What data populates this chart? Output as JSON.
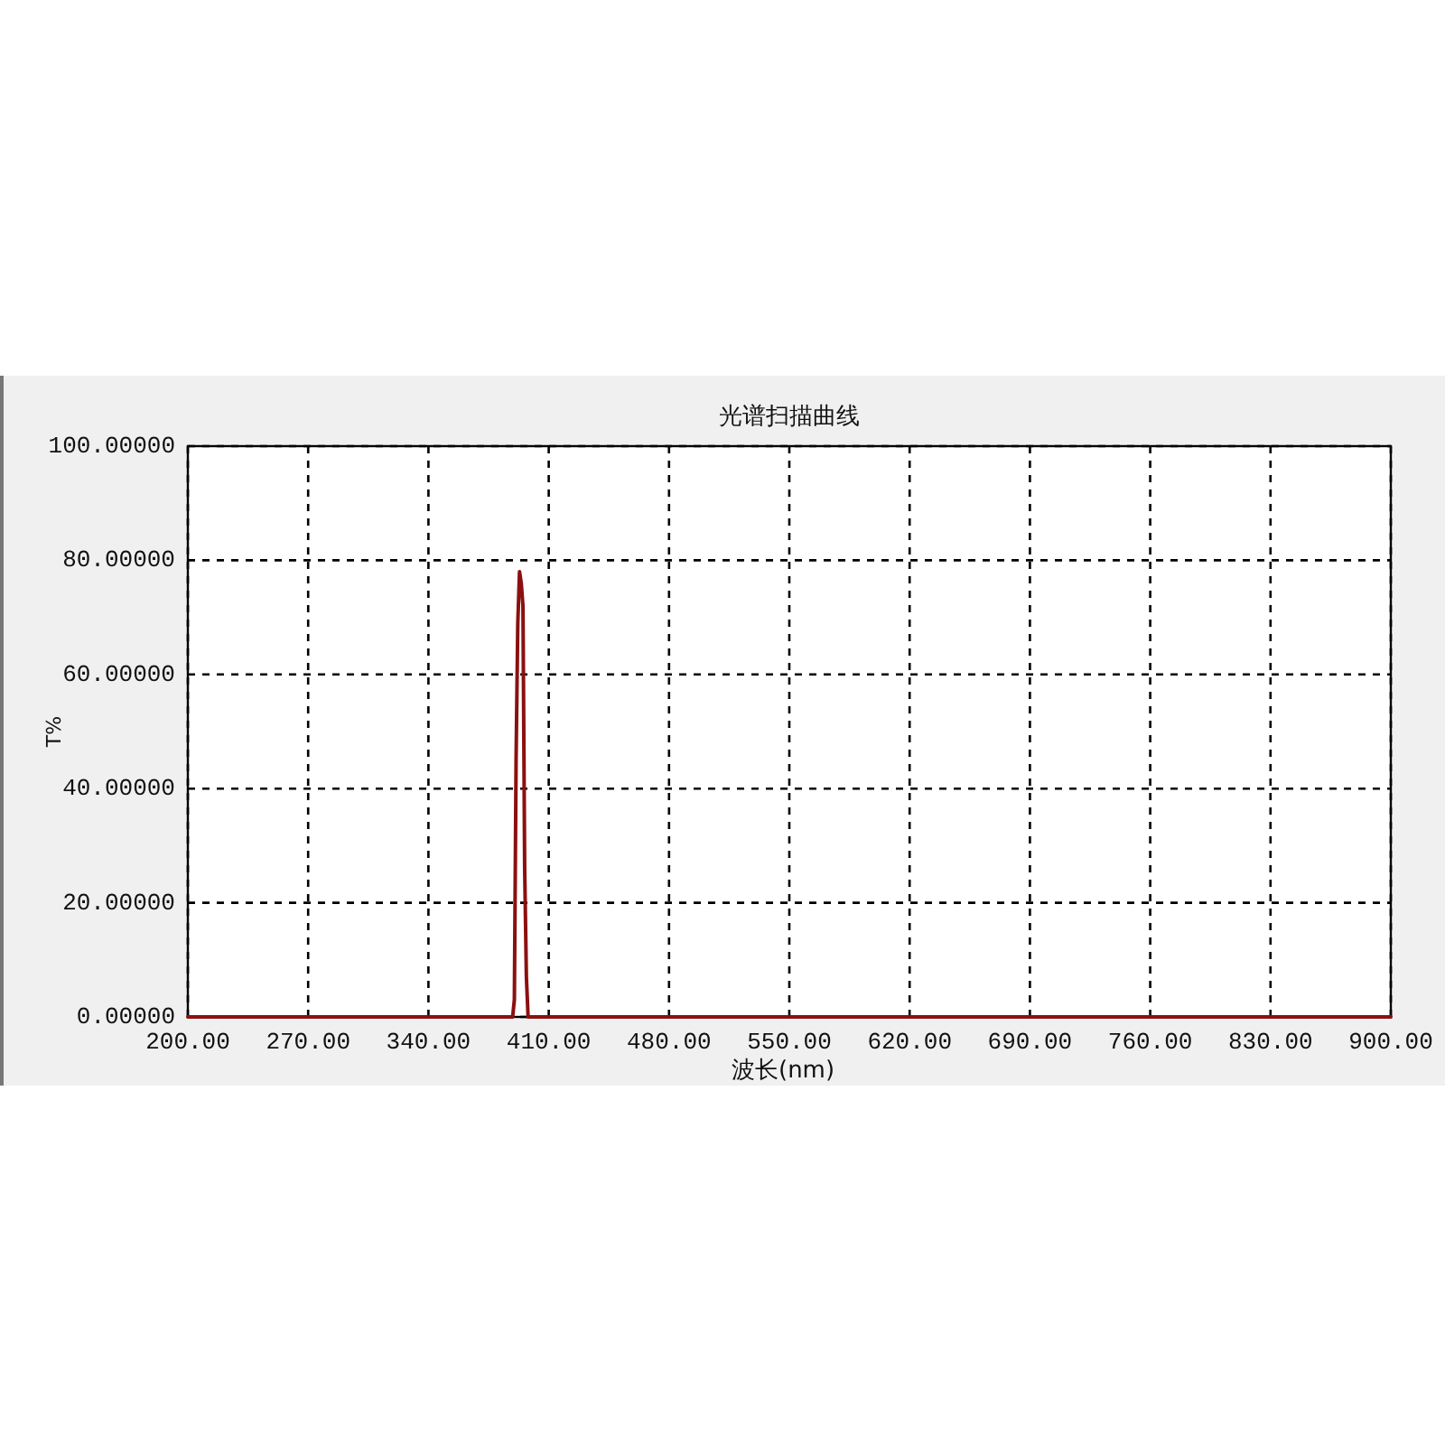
{
  "chart_data": {
    "type": "line",
    "title": "光谱扫描曲线",
    "xlabel": "波长(nm)",
    "ylabel": "T%",
    "x": [
      200,
      388,
      389,
      390,
      391,
      392,
      393,
      394,
      395,
      396,
      397,
      398,
      399,
      900
    ],
    "series": [
      {
        "color": "#8b1010",
        "values": [
          0,
          0,
          0,
          3,
          45,
          69,
          78,
          76,
          72,
          26,
          7,
          0,
          0,
          0
        ]
      }
    ],
    "xlim": [
      200,
      900
    ],
    "ylim": [
      0,
      100
    ],
    "xticks": [
      {
        "value": 200,
        "label": "200.00"
      },
      {
        "value": 270,
        "label": "270.00"
      },
      {
        "value": 340,
        "label": "340.00"
      },
      {
        "value": 410,
        "label": "410.00"
      },
      {
        "value": 480,
        "label": "480.00"
      },
      {
        "value": 550,
        "label": "550.00"
      },
      {
        "value": 620,
        "label": "620.00"
      },
      {
        "value": 690,
        "label": "690.00"
      },
      {
        "value": 760,
        "label": "760.00"
      },
      {
        "value": 830,
        "label": "830.00"
      },
      {
        "value": 900,
        "label": "900.00"
      }
    ],
    "yticks": [
      {
        "value": 0,
        "label": "0.00000"
      },
      {
        "value": 20,
        "label": "20.00000"
      },
      {
        "value": 40,
        "label": "40.00000"
      },
      {
        "value": 60,
        "label": "60.00000"
      },
      {
        "value": 80,
        "label": "80.00000"
      },
      {
        "value": 100,
        "label": "100.00000"
      }
    ],
    "grid": true
  }
}
